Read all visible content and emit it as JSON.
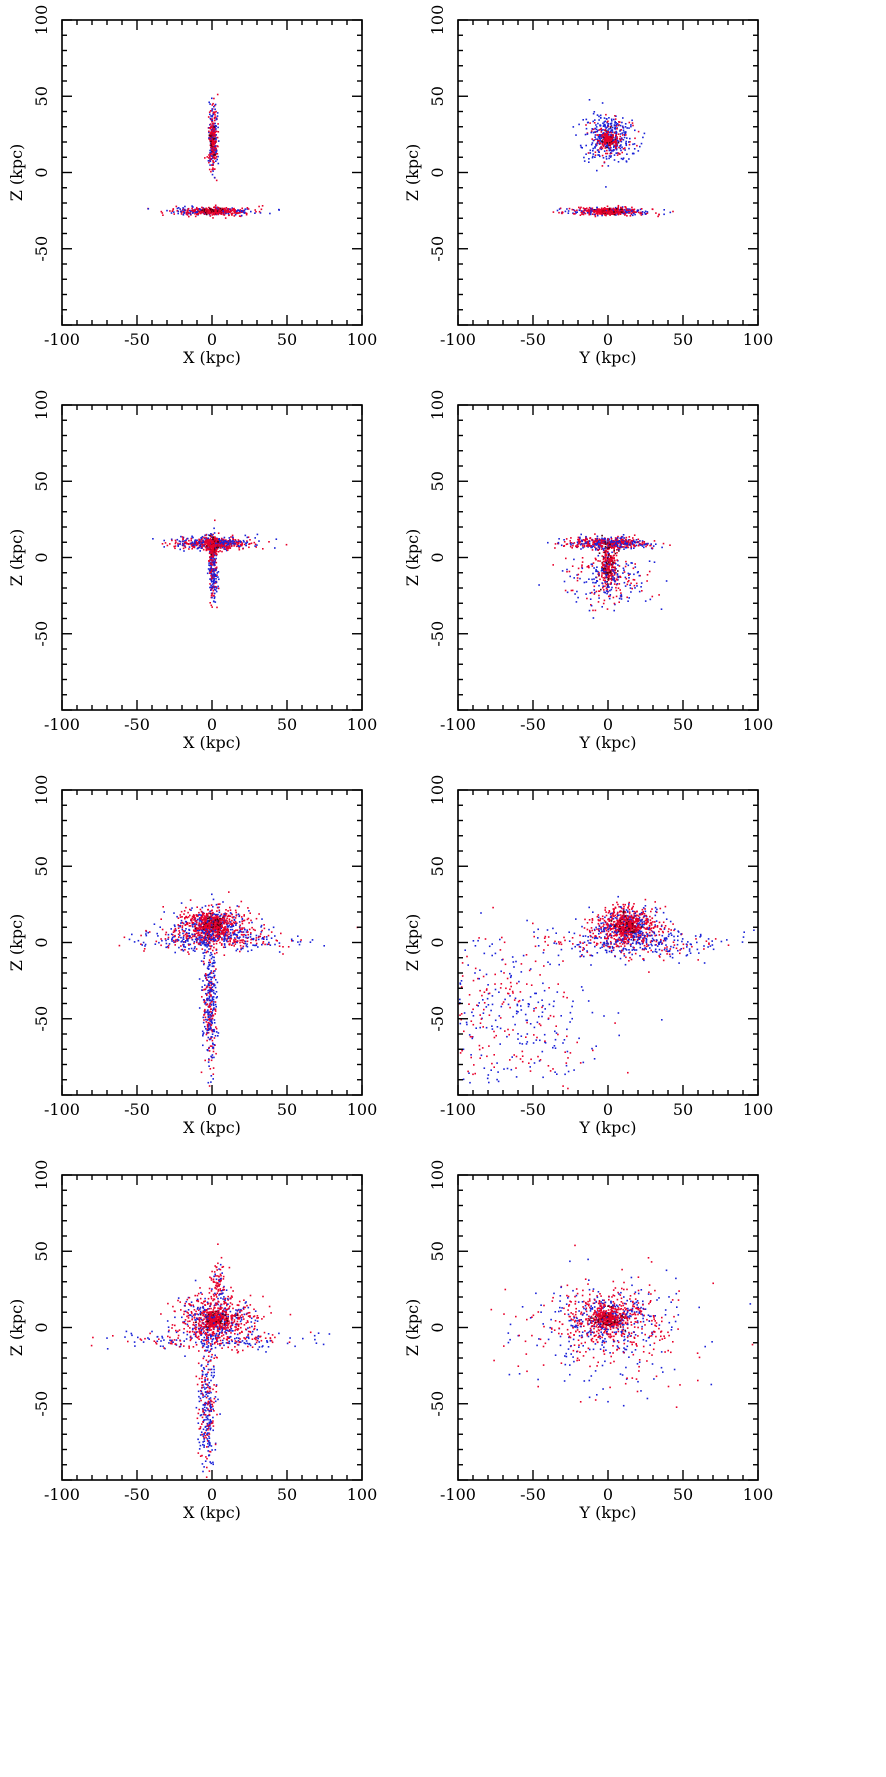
{
  "figure": {
    "rows": 4,
    "cols": 2,
    "colors": {
      "red": "#e8002a",
      "blue": "#1a22d8",
      "dark": "#4a0010",
      "axis": "#000000",
      "background": "#ffffff"
    }
  },
  "chart_data": [
    {
      "type": "scatter",
      "row": 0,
      "col": 0,
      "xlabel": "X (kpc)",
      "ylabel": "Z (kpc)",
      "xlim": [
        -100,
        100
      ],
      "ylim": [
        -100,
        100
      ],
      "xticks": [
        "-100",
        "-50",
        "0",
        "50",
        "100"
      ],
      "yticks": [
        "100",
        "50",
        "0",
        "-50"
      ],
      "grid": false,
      "ticks": "inward, both sides, minor every 10",
      "components": [
        {
          "label": "upper galaxy (edge-on, vertical)",
          "cx": 0,
          "cy": 23,
          "sx": 1.5,
          "sy": 12,
          "n": 260,
          "blueFrac": 0.45
        },
        {
          "label": "upper galaxy core",
          "cx": 0,
          "cy": 22,
          "sx": 1,
          "sy": 5,
          "n": 120,
          "blueFrac": 0.1
        },
        {
          "label": "lower galaxy (edge-on, horizontal)",
          "cx": 0,
          "cy": -25,
          "sx": 14,
          "sy": 1.3,
          "n": 360,
          "blueFrac": 0.4
        },
        {
          "label": "lower galaxy core",
          "cx": 0,
          "cy": -25,
          "sx": 5,
          "sy": 1,
          "n": 160,
          "blueFrac": 0.05
        }
      ]
    },
    {
      "type": "scatter",
      "row": 0,
      "col": 1,
      "xlabel": "Y (kpc)",
      "ylabel": "Z (kpc)",
      "xlim": [
        -100,
        100
      ],
      "ylim": [
        -100,
        100
      ],
      "xticks": [
        "-100",
        "-50",
        "0",
        "50",
        "100"
      ],
      "yticks": [
        "100",
        "50",
        "0",
        "-50"
      ],
      "grid": false,
      "components": [
        {
          "label": "upper galaxy (face-on disk)",
          "cx": 0,
          "cy": 23,
          "sx": 8,
          "sy": 8,
          "n": 420,
          "blueFrac": 0.75
        },
        {
          "label": "upper galaxy core",
          "cx": 0,
          "cy": 23,
          "sx": 2.5,
          "sy": 2.5,
          "n": 160,
          "blueFrac": 0.05
        },
        {
          "label": "lower galaxy (edge-on, horizontal)",
          "cx": 0,
          "cy": -25,
          "sx": 14,
          "sy": 1.3,
          "n": 360,
          "blueFrac": 0.4
        },
        {
          "label": "lower galaxy core",
          "cx": 0,
          "cy": -25,
          "sx": 5,
          "sy": 1,
          "n": 160,
          "blueFrac": 0.05
        }
      ]
    },
    {
      "type": "scatter",
      "row": 1,
      "col": 0,
      "xlabel": "X (kpc)",
      "ylabel": "Z (kpc)",
      "xlim": [
        -100,
        100
      ],
      "ylim": [
        -100,
        100
      ],
      "xticks": [
        "-100",
        "-50",
        "0",
        "50",
        "100"
      ],
      "yticks": [
        "100",
        "50",
        "0",
        "-50"
      ],
      "grid": false,
      "components": [
        {
          "label": "horizontal disk",
          "cx": 0,
          "cy": 10,
          "sx": 13,
          "sy": 2,
          "n": 520,
          "blueFrac": 0.45
        },
        {
          "label": "vertical stem",
          "cx": 0,
          "cy": -8,
          "sx": 1.5,
          "sy": 11,
          "n": 260,
          "blueFrac": 0.6
        },
        {
          "label": "core",
          "cx": 0,
          "cy": 8,
          "sx": 2,
          "sy": 3,
          "n": 160,
          "blueFrac": 0.05
        }
      ]
    },
    {
      "type": "scatter",
      "row": 1,
      "col": 1,
      "xlabel": "Y (kpc)",
      "ylabel": "Z (kpc)",
      "xlim": [
        -100,
        100
      ],
      "ylim": [
        -100,
        100
      ],
      "xticks": [
        "-100",
        "-50",
        "0",
        "50",
        "100"
      ],
      "yticks": [
        "100",
        "50",
        "0",
        "-50"
      ],
      "grid": false,
      "components": [
        {
          "label": "horizontal disk",
          "cx": 0,
          "cy": 10,
          "sx": 13,
          "sy": 2,
          "n": 500,
          "blueFrac": 0.45
        },
        {
          "label": "compact core below disk",
          "cx": 0,
          "cy": -3,
          "sx": 2.5,
          "sy": 6,
          "n": 260,
          "blueFrac": 0.1
        },
        {
          "label": "diffuse tidal debris",
          "cx": 0,
          "cy": -15,
          "sx": 13,
          "sy": 8,
          "n": 260,
          "blueFrac": 0.55
        }
      ]
    },
    {
      "type": "scatter",
      "row": 2,
      "col": 0,
      "xlabel": "X (kpc)",
      "ylabel": "Z (kpc)",
      "xlim": [
        -100,
        100
      ],
      "ylim": [
        -100,
        100
      ],
      "xticks": [
        "-100",
        "-50",
        "0",
        "50",
        "100"
      ],
      "yticks": [
        "100",
        "50",
        "0",
        "-50"
      ],
      "grid": false,
      "components": [
        {
          "label": "central merger remnant",
          "cx": 0,
          "cy": 12,
          "sx": 12,
          "sy": 6,
          "n": 650,
          "blueFrac": 0.3
        },
        {
          "label": "remnant core",
          "cx": 0,
          "cy": 11,
          "sx": 4,
          "sy": 4,
          "n": 260,
          "blueFrac": 0.05
        },
        {
          "label": "horizontal tidal arms",
          "cx": 0,
          "cy": 2,
          "sx": 25,
          "sy": 4,
          "n": 360,
          "blueFrac": 0.6
        },
        {
          "label": "downward tidal tail",
          "cx": -2,
          "cy": -40,
          "sx": 2.5,
          "sy": 20,
          "n": 360,
          "blueFrac": 0.65
        }
      ]
    },
    {
      "type": "scatter",
      "row": 2,
      "col": 1,
      "xlabel": "Y (kpc)",
      "ylabel": "Z (kpc)",
      "xlim": [
        -100,
        100
      ],
      "ylim": [
        -100,
        100
      ],
      "xticks": [
        "-100",
        "-50",
        "0",
        "50",
        "100"
      ],
      "yticks": [
        "100",
        "50",
        "0",
        "-50"
      ],
      "grid": false,
      "components": [
        {
          "label": "central merger remnant",
          "cx": 12,
          "cy": 12,
          "sx": 11,
          "sy": 6,
          "n": 600,
          "blueFrac": 0.3
        },
        {
          "label": "remnant core",
          "cx": 12,
          "cy": 11,
          "sx": 4,
          "sy": 4,
          "n": 260,
          "blueFrac": 0.05
        },
        {
          "label": "horizontal tidal arms",
          "cx": 15,
          "cy": 0,
          "sx": 28,
          "sy": 5,
          "n": 380,
          "blueFrac": 0.6
        },
        {
          "label": "diffuse halo, lower left",
          "cx": -70,
          "cy": -50,
          "sx": 30,
          "sy": 28,
          "n": 420,
          "blueFrac": 0.55
        }
      ]
    },
    {
      "type": "scatter",
      "row": 3,
      "col": 0,
      "xlabel": "X (kpc)",
      "ylabel": "Z (kpc)",
      "xlim": [
        -100,
        100
      ],
      "ylim": [
        -100,
        100
      ],
      "xticks": [
        "-100",
        "-50",
        "0",
        "50",
        "100"
      ],
      "yticks": [
        "100",
        "50",
        "0",
        "-50"
      ],
      "grid": false,
      "components": [
        {
          "label": "central remnant",
          "cx": 2,
          "cy": 6,
          "sx": 13,
          "sy": 8,
          "n": 650,
          "blueFrac": 0.35
        },
        {
          "label": "remnant core",
          "cx": 2,
          "cy": 6,
          "sx": 5,
          "sy": 3,
          "n": 260,
          "blueFrac": 0.05
        },
        {
          "label": "horizontal arms",
          "cx": 0,
          "cy": -8,
          "sx": 30,
          "sy": 3,
          "n": 200,
          "blueFrac": 0.6
        },
        {
          "label": "downward tidal tail",
          "cx": -4,
          "cy": -50,
          "sx": 3,
          "sy": 22,
          "n": 320,
          "blueFrac": 0.6
        },
        {
          "label": "upward plume",
          "cx": 4,
          "cy": 30,
          "sx": 3,
          "sy": 8,
          "n": 90,
          "blueFrac": 0.3
        }
      ]
    },
    {
      "type": "scatter",
      "row": 3,
      "col": 1,
      "xlabel": "Y (kpc)",
      "ylabel": "Z (kpc)",
      "xlim": [
        -100,
        100
      ],
      "ylim": [
        -100,
        100
      ],
      "xticks": [
        "-100",
        "-50",
        "0",
        "50",
        "100"
      ],
      "yticks": [
        "100",
        "50",
        "0",
        "-50"
      ],
      "grid": false,
      "components": [
        {
          "label": "central remnant",
          "cx": 0,
          "cy": 6,
          "sx": 16,
          "sy": 9,
          "n": 620,
          "blueFrac": 0.35
        },
        {
          "label": "remnant core",
          "cx": 0,
          "cy": 6,
          "sx": 5,
          "sy": 3,
          "n": 260,
          "blueFrac": 0.05
        },
        {
          "label": "diffuse halo",
          "cx": 0,
          "cy": -5,
          "sx": 35,
          "sy": 22,
          "n": 300,
          "blueFrac": 0.5
        }
      ]
    }
  ]
}
